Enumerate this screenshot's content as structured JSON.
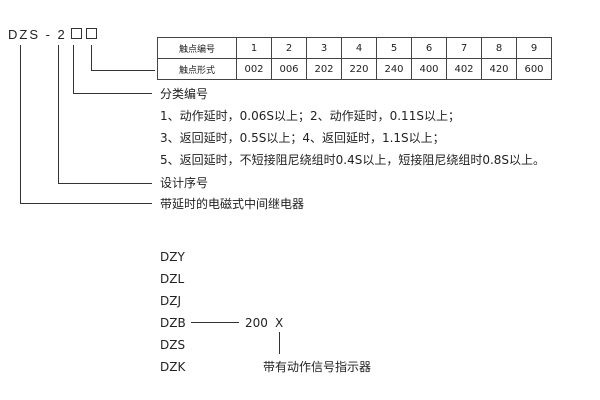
{
  "model_code": {
    "prefix": "DZS - 2",
    "box_count": 2
  },
  "contact_table": {
    "row1_label": "触点编号",
    "row2_label": "触点形式",
    "numbers": [
      "1",
      "2",
      "3",
      "4",
      "5",
      "6",
      "7",
      "8",
      "9"
    ],
    "forms": [
      "002",
      "006",
      "202",
      "220",
      "240",
      "400",
      "402",
      "420",
      "600"
    ]
  },
  "classification": {
    "title": "分类编号",
    "lines": [
      "1、动作延时，0.06S以上；2、动作延时，0.11S以上；",
      "3、返回延时，0.5S以上；4、返回延时，1.1S以上；",
      "5、返回延时，不短接阻尼绕组时0.4S以上，短接阻尼绕组时0.8S以上。"
    ]
  },
  "design_serial": "设计序号",
  "description": "带延时的电磁式中间继电器",
  "series": [
    "DZY",
    "DZL",
    "DZJ",
    "DZB",
    "DZS",
    "DZK"
  ],
  "suffix_number": "200",
  "suffix_letter": "X",
  "indicator_note": "带有动作信号指示器"
}
